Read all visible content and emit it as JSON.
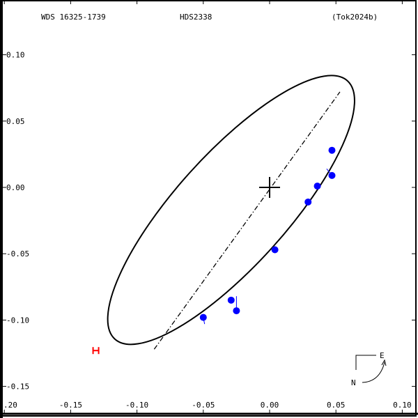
{
  "header": {
    "wds_id": "WDS 16325-1739",
    "discoverer": "HDS2338",
    "reference": "(Tok2024b)"
  },
  "compass": {
    "north_label": "N",
    "east_label": "E"
  },
  "chart_data": {
    "type": "scatter",
    "title": "WDS 16325-1739  HDS2338  (Tok2024b)",
    "xlabel": "",
    "ylabel": "",
    "xlim": [
      -0.2,
      0.105
    ],
    "ylim": [
      -0.165,
      0.14
    ],
    "grid": false,
    "x_ticks": [
      -0.2,
      -0.15,
      -0.1,
      -0.05,
      0.0,
      0.05,
      0.1
    ],
    "x_tick_labels": [
      ".20",
      "-0.15",
      "-0.10",
      "-0.05",
      "0.00",
      "0.05",
      "0.10"
    ],
    "y_ticks": [
      0.1,
      0.05,
      0.0,
      -0.05,
      -0.1,
      -0.15
    ],
    "y_tick_labels": [
      "0.10",
      "0.05",
      "0.00",
      "-0.05",
      "-0.10",
      "-0.15"
    ],
    "orbit_ellipse": {
      "center": [
        -0.029,
        -0.017
      ],
      "semi_major": 0.131,
      "semi_minor": 0.042,
      "angle_deg": 48,
      "color": "#000000"
    },
    "line_of_nodes": {
      "style": "dash-dot",
      "from": [
        -0.087,
        -0.122
      ],
      "to": [
        0.053,
        0.072
      ],
      "color": "#000000"
    },
    "primary_star": {
      "x": 0.0,
      "y": 0.0,
      "marker": "cross"
    },
    "periastron_marker": {
      "x": -0.131,
      "y": -0.123,
      "color": "#ff0000"
    },
    "series": [
      {
        "name": "observations",
        "color": "#0000ff",
        "marker": "filled-circle",
        "points": [
          {
            "x": 0.047,
            "y": 0.028,
            "ox": 0.047,
            "oy": 0.029
          },
          {
            "x": 0.047,
            "y": 0.009,
            "ox": 0.043,
            "oy": 0.014
          },
          {
            "x": 0.036,
            "y": 0.001,
            "ox": 0.037,
            "oy": 0.001
          },
          {
            "x": 0.029,
            "y": -0.011,
            "ox": 0.029,
            "oy": -0.011
          },
          {
            "x": 0.004,
            "y": -0.047,
            "ox": 0.005,
            "oy": -0.048
          },
          {
            "x": -0.029,
            "y": -0.085,
            "ox": -0.028,
            "oy": -0.085
          },
          {
            "x": -0.025,
            "y": -0.093,
            "ox": -0.025,
            "oy": -0.082
          },
          {
            "x": -0.05,
            "y": -0.098,
            "ox": -0.049,
            "oy": -0.103
          }
        ]
      }
    ]
  }
}
